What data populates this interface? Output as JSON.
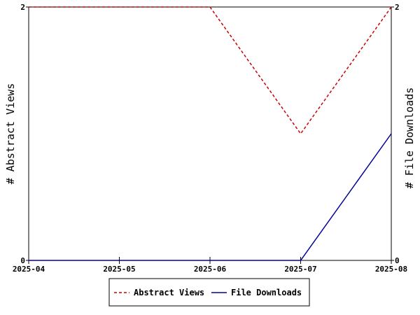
{
  "chart_data": {
    "type": "line",
    "x": [
      "2025-04",
      "2025-05",
      "2025-06",
      "2025-07",
      "2025-08"
    ],
    "x_tick_labels": [
      "2025-04",
      "2025-05",
      "2025-06",
      "2025-07",
      "2025-08"
    ],
    "ylabel_left": "# Abstract Views",
    "ylabel_right": "# File Downloads",
    "ylim_left": [
      0,
      2
    ],
    "ylim_right": [
      0,
      2
    ],
    "y_ticks_left": [
      "0",
      "2"
    ],
    "y_ticks_right": [
      "0",
      "2"
    ],
    "grid": false,
    "legend_position": "bottom-center",
    "series": [
      {
        "name": "Abstract Views",
        "axis": "left",
        "values": [
          2,
          2,
          2,
          1,
          2
        ],
        "color": "#cc0000",
        "style": "dashed"
      },
      {
        "name": "File Downloads",
        "axis": "right",
        "values": [
          0,
          0,
          0,
          0,
          1
        ],
        "color": "#000099",
        "style": "solid"
      }
    ]
  }
}
